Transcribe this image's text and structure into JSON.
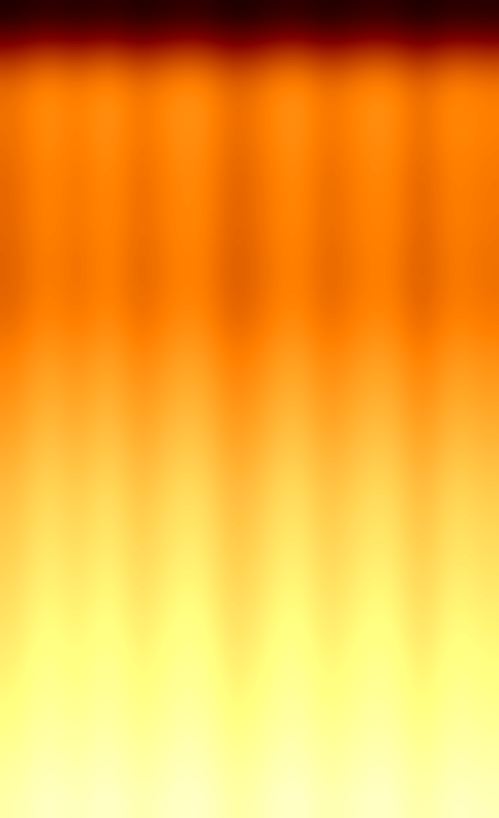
{
  "chart_data": {
    "type": "heatmap",
    "tick_labels": false,
    "color_range": [
      0,
      1
    ],
    "cells": [
      [
        0.05,
        0.09,
        0.06,
        0.09,
        0.05,
        0.08,
        0.09,
        0.04,
        0.07,
        0.09,
        0.05,
        0.08,
        0.09,
        0.04,
        0.08,
        0.07
      ],
      [
        0.3,
        0.37,
        0.32,
        0.38,
        0.3,
        0.36,
        0.37,
        0.28,
        0.33,
        0.38,
        0.3,
        0.35,
        0.37,
        0.28,
        0.36,
        0.33
      ],
      [
        0.46,
        0.53,
        0.48,
        0.54,
        0.46,
        0.52,
        0.53,
        0.44,
        0.49,
        0.54,
        0.46,
        0.51,
        0.53,
        0.44,
        0.52,
        0.49
      ],
      [
        0.47,
        0.54,
        0.49,
        0.55,
        0.47,
        0.53,
        0.54,
        0.45,
        0.5,
        0.55,
        0.47,
        0.52,
        0.54,
        0.45,
        0.53,
        0.5
      ],
      [
        0.46,
        0.53,
        0.48,
        0.54,
        0.46,
        0.52,
        0.53,
        0.44,
        0.49,
        0.54,
        0.46,
        0.51,
        0.53,
        0.44,
        0.52,
        0.49
      ],
      [
        0.45,
        0.52,
        0.47,
        0.53,
        0.45,
        0.51,
        0.52,
        0.43,
        0.48,
        0.53,
        0.45,
        0.5,
        0.52,
        0.43,
        0.51,
        0.48
      ],
      [
        0.45,
        0.52,
        0.47,
        0.53,
        0.45,
        0.51,
        0.52,
        0.43,
        0.48,
        0.53,
        0.45,
        0.5,
        0.52,
        0.43,
        0.51,
        0.48
      ],
      [
        0.44,
        0.51,
        0.46,
        0.52,
        0.44,
        0.5,
        0.51,
        0.42,
        0.47,
        0.52,
        0.44,
        0.49,
        0.51,
        0.42,
        0.5,
        0.47
      ],
      [
        0.44,
        0.51,
        0.46,
        0.52,
        0.44,
        0.5,
        0.51,
        0.42,
        0.47,
        0.52,
        0.44,
        0.49,
        0.51,
        0.42,
        0.5,
        0.47
      ],
      [
        0.46,
        0.53,
        0.48,
        0.54,
        0.46,
        0.52,
        0.53,
        0.44,
        0.49,
        0.54,
        0.46,
        0.51,
        0.53,
        0.44,
        0.52,
        0.49
      ],
      [
        0.5,
        0.57,
        0.52,
        0.58,
        0.5,
        0.56,
        0.57,
        0.48,
        0.53,
        0.58,
        0.5,
        0.55,
        0.57,
        0.48,
        0.56,
        0.53
      ],
      [
        0.53,
        0.6,
        0.55,
        0.61,
        0.53,
        0.59,
        0.6,
        0.51,
        0.56,
        0.61,
        0.53,
        0.58,
        0.6,
        0.51,
        0.59,
        0.56
      ],
      [
        0.56,
        0.63,
        0.58,
        0.64,
        0.56,
        0.62,
        0.63,
        0.54,
        0.59,
        0.64,
        0.56,
        0.61,
        0.63,
        0.54,
        0.62,
        0.59
      ],
      [
        0.59,
        0.66,
        0.61,
        0.67,
        0.59,
        0.65,
        0.66,
        0.57,
        0.62,
        0.67,
        0.59,
        0.64,
        0.66,
        0.57,
        0.65,
        0.62
      ],
      [
        0.62,
        0.69,
        0.64,
        0.7,
        0.62,
        0.68,
        0.69,
        0.6,
        0.65,
        0.7,
        0.62,
        0.67,
        0.69,
        0.6,
        0.68,
        0.65
      ],
      [
        0.64,
        0.71,
        0.66,
        0.72,
        0.64,
        0.7,
        0.71,
        0.62,
        0.67,
        0.72,
        0.64,
        0.69,
        0.71,
        0.62,
        0.7,
        0.67
      ],
      [
        0.66,
        0.73,
        0.68,
        0.74,
        0.66,
        0.72,
        0.73,
        0.64,
        0.69,
        0.74,
        0.66,
        0.71,
        0.73,
        0.64,
        0.72,
        0.69
      ],
      [
        0.68,
        0.75,
        0.7,
        0.76,
        0.68,
        0.74,
        0.75,
        0.66,
        0.71,
        0.76,
        0.68,
        0.73,
        0.75,
        0.66,
        0.74,
        0.71
      ],
      [
        0.7,
        0.77,
        0.72,
        0.78,
        0.7,
        0.76,
        0.77,
        0.68,
        0.73,
        0.78,
        0.7,
        0.75,
        0.77,
        0.68,
        0.76,
        0.73
      ],
      [
        0.72,
        0.79,
        0.74,
        0.8,
        0.72,
        0.78,
        0.79,
        0.7,
        0.75,
        0.8,
        0.72,
        0.77,
        0.79,
        0.7,
        0.78,
        0.75
      ],
      [
        0.74,
        0.81,
        0.76,
        0.82,
        0.74,
        0.8,
        0.81,
        0.72,
        0.77,
        0.82,
        0.74,
        0.79,
        0.81,
        0.72,
        0.8,
        0.77
      ],
      [
        0.77,
        0.84,
        0.79,
        0.85,
        0.77,
        0.83,
        0.84,
        0.75,
        0.8,
        0.85,
        0.77,
        0.82,
        0.84,
        0.75,
        0.83,
        0.8
      ],
      [
        0.8,
        0.87,
        0.82,
        0.88,
        0.8,
        0.86,
        0.87,
        0.78,
        0.83,
        0.88,
        0.8,
        0.85,
        0.87,
        0.78,
        0.86,
        0.83
      ],
      [
        0.83,
        0.9,
        0.85,
        0.91,
        0.83,
        0.89,
        0.9,
        0.81,
        0.86,
        0.91,
        0.83,
        0.88,
        0.9,
        0.81,
        0.89,
        0.86
      ]
    ]
  }
}
